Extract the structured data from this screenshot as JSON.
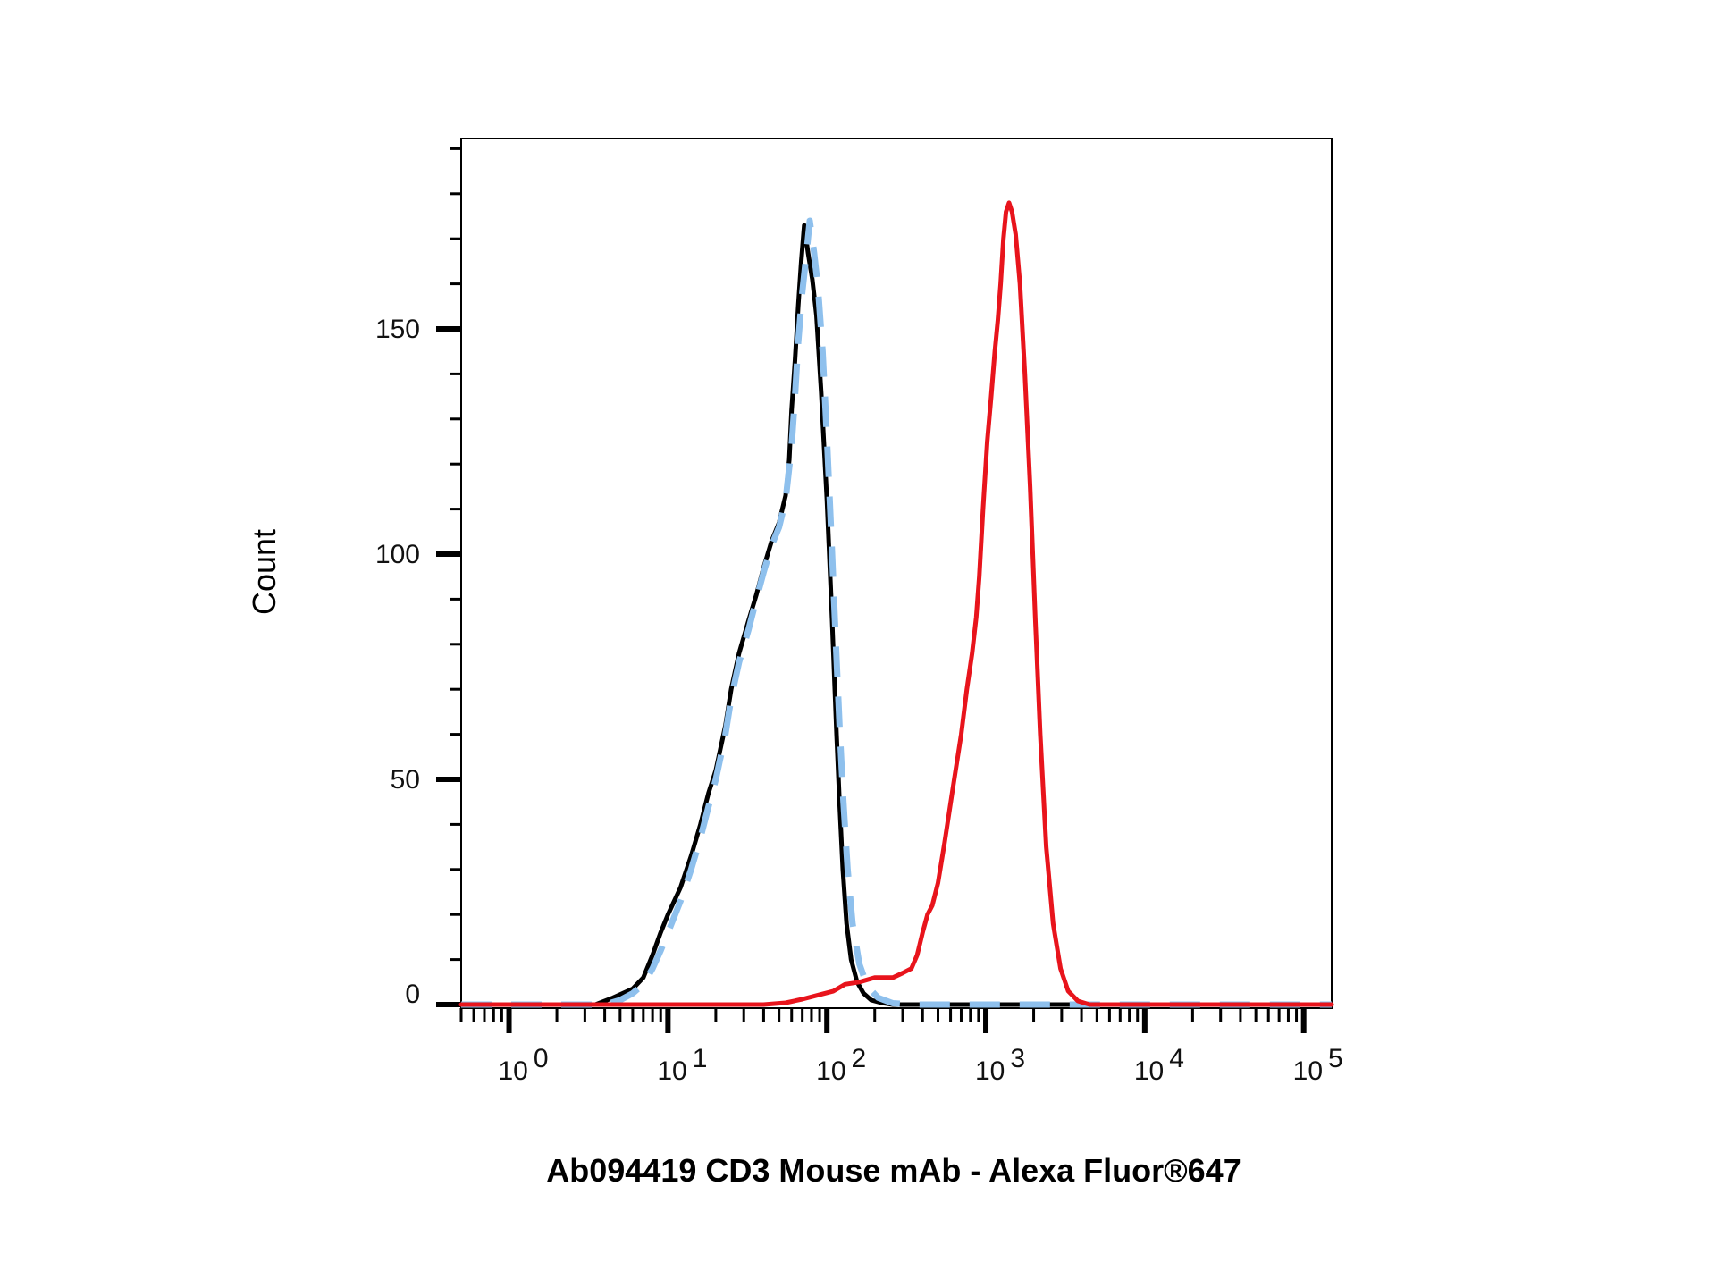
{
  "chart_data": {
    "type": "line",
    "title": "",
    "xlabel": "Ab094419 CD3 Mouse mAb - Alexa Fluor®647",
    "ylabel": "Count",
    "x_scale": "log",
    "xlim": [
      0.5,
      150000
    ],
    "ylim": [
      0,
      192
    ],
    "x_ticks": [
      {
        "value": 1,
        "base": "10",
        "exp": "0"
      },
      {
        "value": 10,
        "base": "10",
        "exp": "1"
      },
      {
        "value": 100,
        "base": "10",
        "exp": "2"
      },
      {
        "value": 1000,
        "base": "10",
        "exp": "3"
      },
      {
        "value": 10000,
        "base": "10",
        "exp": "4"
      },
      {
        "value": 100000,
        "base": "10",
        "exp": "5"
      }
    ],
    "y_ticks": [
      {
        "value": 0,
        "label": "0"
      },
      {
        "value": 50,
        "label": "50"
      },
      {
        "value": 100,
        "label": "100"
      },
      {
        "value": 150,
        "label": "150"
      }
    ],
    "grid": false,
    "legend": "none",
    "series": [
      {
        "color": "#000000",
        "style": "solid",
        "points": [
          [
            0.5,
            0
          ],
          [
            3.5,
            0
          ],
          [
            4.5,
            1.5
          ],
          [
            6,
            3.5
          ],
          [
            7,
            6
          ],
          [
            8,
            11
          ],
          [
            9,
            16
          ],
          [
            10,
            20
          ],
          [
            12,
            26
          ],
          [
            14,
            33
          ],
          [
            16,
            40
          ],
          [
            18,
            47
          ],
          [
            20,
            52
          ],
          [
            23,
            62
          ],
          [
            25,
            70
          ],
          [
            28,
            78
          ],
          [
            32,
            85
          ],
          [
            36,
            91
          ],
          [
            40,
            97
          ],
          [
            45,
            103
          ],
          [
            50,
            107
          ],
          [
            55,
            113
          ],
          [
            58,
            121
          ],
          [
            60,
            132
          ],
          [
            63,
            143
          ],
          [
            66,
            155
          ],
          [
            69,
            165
          ],
          [
            72,
            173
          ],
          [
            76,
            167
          ],
          [
            81,
            161
          ],
          [
            86,
            153
          ],
          [
            92,
            136
          ],
          [
            100,
            112
          ],
          [
            108,
            85
          ],
          [
            115,
            60
          ],
          [
            120,
            45
          ],
          [
            126,
            30
          ],
          [
            133,
            18
          ],
          [
            142,
            10
          ],
          [
            155,
            5
          ],
          [
            170,
            2.5
          ],
          [
            190,
            1
          ],
          [
            220,
            0.4
          ],
          [
            260,
            0
          ],
          [
            150000,
            0
          ]
        ]
      },
      {
        "color": "#8ec0ed",
        "style": "dashed",
        "points": [
          [
            0.5,
            0
          ],
          [
            4,
            0
          ],
          [
            5,
            1
          ],
          [
            6,
            2.5
          ],
          [
            7,
            4.5
          ],
          [
            8,
            8
          ],
          [
            9,
            12
          ],
          [
            10,
            16
          ],
          [
            12,
            23
          ],
          [
            14,
            30
          ],
          [
            16,
            37
          ],
          [
            18,
            44
          ],
          [
            20,
            50
          ],
          [
            23,
            60
          ],
          [
            25,
            68
          ],
          [
            28,
            76
          ],
          [
            32,
            83
          ],
          [
            36,
            90
          ],
          [
            40,
            96
          ],
          [
            45,
            102
          ],
          [
            50,
            106
          ],
          [
            55,
            112
          ],
          [
            60,
            124
          ],
          [
            63,
            135
          ],
          [
            66,
            147
          ],
          [
            70,
            158
          ],
          [
            74,
            166
          ],
          [
            78,
            174
          ],
          [
            83,
            167
          ],
          [
            88,
            159
          ],
          [
            94,
            145
          ],
          [
            100,
            126
          ],
          [
            107,
            103
          ],
          [
            114,
            80
          ],
          [
            120,
            62
          ],
          [
            127,
            45
          ],
          [
            135,
            30
          ],
          [
            145,
            18
          ],
          [
            160,
            9
          ],
          [
            180,
            4
          ],
          [
            210,
            1.5
          ],
          [
            260,
            0.3
          ],
          [
            350,
            0
          ],
          [
            150000,
            0
          ]
        ]
      },
      {
        "color": "#e8141c",
        "style": "solid",
        "points": [
          [
            0.5,
            0
          ],
          [
            40,
            0
          ],
          [
            55,
            0.4
          ],
          [
            70,
            1.2
          ],
          [
            90,
            2.2
          ],
          [
            110,
            3
          ],
          [
            130,
            4.5
          ],
          [
            160,
            5
          ],
          [
            200,
            6
          ],
          [
            260,
            6
          ],
          [
            300,
            7
          ],
          [
            340,
            8
          ],
          [
            370,
            11
          ],
          [
            400,
            16
          ],
          [
            430,
            20
          ],
          [
            460,
            22
          ],
          [
            500,
            27
          ],
          [
            550,
            36
          ],
          [
            620,
            48
          ],
          [
            700,
            60
          ],
          [
            760,
            70
          ],
          [
            820,
            78
          ],
          [
            870,
            86
          ],
          [
            910,
            95
          ],
          [
            960,
            110
          ],
          [
            1020,
            125
          ],
          [
            1080,
            135
          ],
          [
            1140,
            145
          ],
          [
            1190,
            152
          ],
          [
            1240,
            160
          ],
          [
            1290,
            170
          ],
          [
            1340,
            176
          ],
          [
            1400,
            178
          ],
          [
            1460,
            176
          ],
          [
            1540,
            171
          ],
          [
            1640,
            160
          ],
          [
            1760,
            140
          ],
          [
            1900,
            115
          ],
          [
            2050,
            85
          ],
          [
            2200,
            60
          ],
          [
            2400,
            35
          ],
          [
            2650,
            18
          ],
          [
            2950,
            8
          ],
          [
            3300,
            3
          ],
          [
            3800,
            0.8
          ],
          [
            4500,
            0
          ],
          [
            150000,
            0
          ]
        ]
      }
    ]
  }
}
